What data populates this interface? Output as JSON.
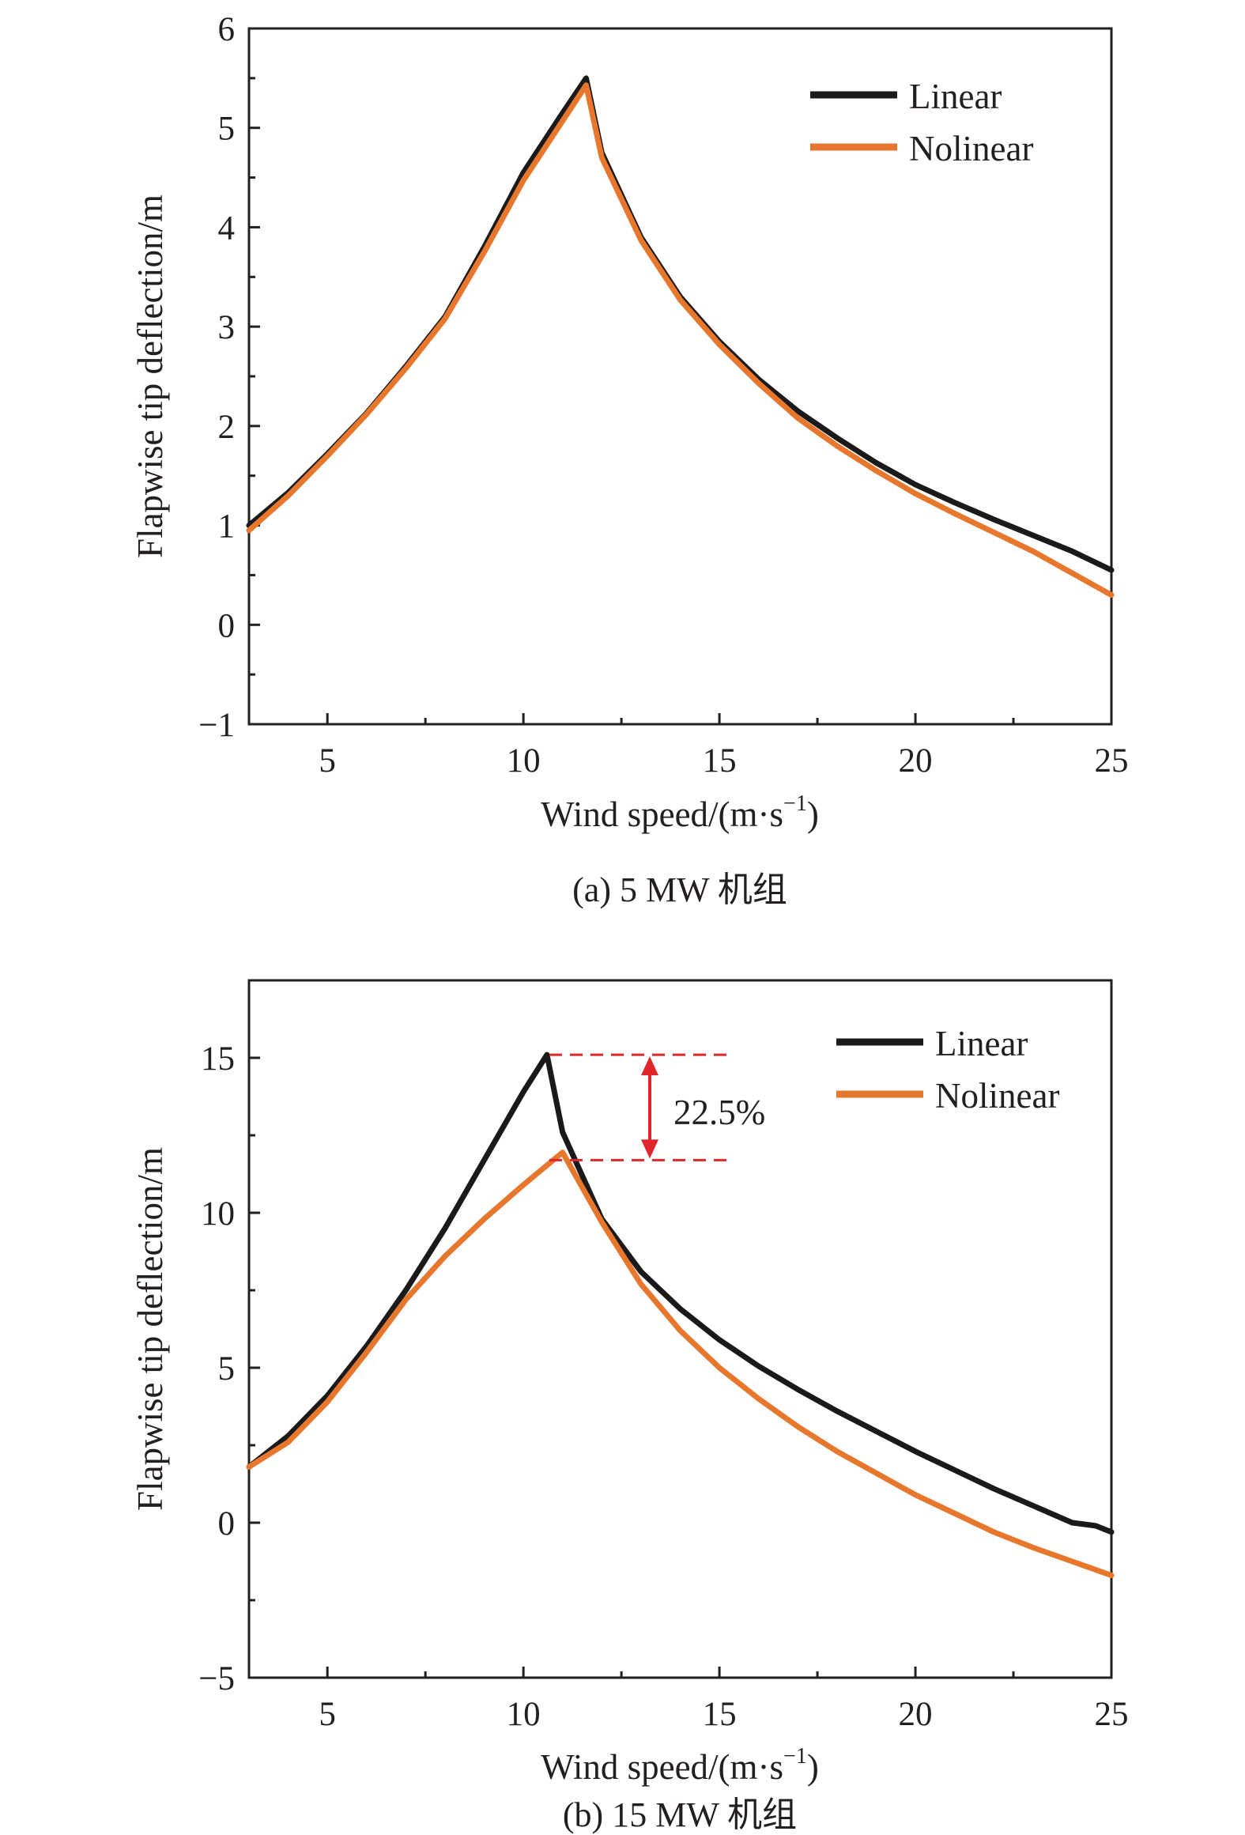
{
  "chart_data": [
    {
      "type": "line",
      "caption": "(a) 5 MW 机组",
      "xlabel": "Wind speed/(m·s",
      "xlabel_sup": "−1",
      "xlabel_close": ")",
      "ylabel": "Flapwise tip deflection/m",
      "xlim": [
        3,
        25
      ],
      "ylim": [
        -1,
        6
      ],
      "xticks": [
        5,
        10,
        15,
        20,
        25
      ],
      "xtick_labels": [
        "5",
        "10",
        "15",
        "20",
        "25"
      ],
      "yticks": [
        -1,
        0,
        1,
        2,
        3,
        4,
        5,
        6
      ],
      "ytick_labels": [
        "−1",
        "0",
        "1",
        "2",
        "3",
        "4",
        "5",
        "6"
      ],
      "legend_position": "top-right",
      "series": [
        {
          "name": "Linear",
          "color": "#1a1a1a",
          "x": [
            3,
            4,
            5,
            6,
            7,
            8,
            9,
            10,
            11,
            11.6,
            12,
            13,
            14,
            15,
            16,
            17,
            18,
            19,
            20,
            21,
            22,
            23,
            24,
            25
          ],
          "y": [
            1.0,
            1.33,
            1.72,
            2.13,
            2.6,
            3.1,
            3.8,
            4.55,
            5.15,
            5.5,
            4.75,
            3.9,
            3.3,
            2.85,
            2.47,
            2.15,
            1.88,
            1.63,
            1.41,
            1.23,
            1.06,
            0.9,
            0.74,
            0.55
          ]
        },
        {
          "name": "Nolinear",
          "color": "#e8772e",
          "x": [
            3,
            4,
            5,
            6,
            7,
            8,
            9,
            10,
            11,
            11.6,
            12,
            13,
            14,
            15,
            16,
            17,
            18,
            19,
            20,
            21,
            22,
            23,
            24,
            25
          ],
          "y": [
            0.95,
            1.3,
            1.7,
            2.12,
            2.58,
            3.08,
            3.75,
            4.47,
            5.07,
            5.43,
            4.7,
            3.87,
            3.27,
            2.82,
            2.43,
            2.08,
            1.8,
            1.55,
            1.32,
            1.12,
            0.93,
            0.74,
            0.52,
            0.3
          ]
        }
      ]
    },
    {
      "type": "line",
      "caption": "(b) 15 MW 机组",
      "xlabel": "Wind speed/(m·s",
      "xlabel_sup": "−1",
      "xlabel_close": ")",
      "ylabel": "Flapwise tip deflection/m",
      "xlim": [
        3,
        25
      ],
      "ylim": [
        -5,
        17.5
      ],
      "xticks": [
        5,
        10,
        15,
        20,
        25
      ],
      "xtick_labels": [
        "5",
        "10",
        "15",
        "20",
        "25"
      ],
      "yticks": [
        -5,
        0,
        5,
        10,
        15
      ],
      "ytick_labels": [
        "−5",
        "0",
        "5",
        "10",
        "15"
      ],
      "legend_position": "top-right",
      "annotation": {
        "text": "22.5%",
        "y_top": 15.1,
        "y_bottom": 11.7
      },
      "series": [
        {
          "name": "Linear",
          "color": "#1a1a1a",
          "x": [
            3,
            4,
            5,
            6,
            7,
            8,
            9,
            10,
            10.6,
            11,
            12,
            13,
            14,
            15,
            16,
            17,
            18,
            19,
            20,
            21,
            22,
            23,
            24,
            24.6,
            25
          ],
          "y": [
            1.8,
            2.8,
            4.1,
            5.7,
            7.5,
            9.5,
            11.7,
            13.9,
            15.1,
            12.6,
            9.8,
            8.1,
            6.9,
            5.9,
            5.05,
            4.3,
            3.6,
            2.95,
            2.3,
            1.7,
            1.1,
            0.55,
            0.0,
            -0.1,
            -0.3
          ]
        },
        {
          "name": "Nolinear",
          "color": "#e8772e",
          "x": [
            3,
            4,
            5,
            6,
            7,
            8,
            9,
            10,
            11,
            12,
            13,
            14,
            15,
            16,
            17,
            18,
            19,
            20,
            21,
            22,
            23,
            24,
            25
          ],
          "y": [
            1.8,
            2.6,
            3.9,
            5.5,
            7.2,
            8.6,
            9.8,
            10.9,
            11.95,
            9.7,
            7.7,
            6.2,
            5.0,
            4.0,
            3.1,
            2.3,
            1.6,
            0.9,
            0.3,
            -0.3,
            -0.8,
            -1.25,
            -1.7
          ]
        }
      ]
    }
  ]
}
